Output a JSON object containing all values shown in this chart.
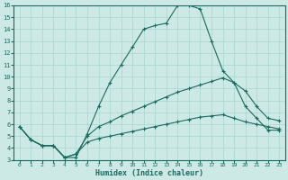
{
  "xlabel": "Humidex (Indice chaleur)",
  "bg_color": "#cce9e5",
  "grid_color": "#a8d5d0",
  "line_color": "#1a6b5e",
  "xlim": [
    -0.5,
    23.5
  ],
  "ylim": [
    3,
    16
  ],
  "xticks": [
    0,
    1,
    2,
    3,
    4,
    5,
    6,
    7,
    8,
    9,
    10,
    11,
    12,
    13,
    14,
    15,
    16,
    17,
    18,
    19,
    20,
    21,
    22,
    23
  ],
  "yticks": [
    3,
    4,
    5,
    6,
    7,
    8,
    9,
    10,
    11,
    12,
    13,
    14,
    15,
    16
  ],
  "series": [
    [
      5.8,
      4.7,
      4.2,
      4.2,
      3.2,
      3.2,
      5.2,
      7.5,
      9.5,
      11.0,
      12.5,
      14.0,
      14.3,
      14.5,
      16.0,
      16.0,
      15.7,
      13.0,
      10.5,
      9.5,
      7.5,
      6.5,
      5.5,
      5.5
    ],
    [
      5.8,
      4.7,
      4.2,
      4.2,
      3.2,
      3.5,
      5.0,
      5.8,
      6.2,
      6.7,
      7.1,
      7.5,
      7.9,
      8.3,
      8.7,
      9.0,
      9.3,
      9.6,
      9.9,
      9.5,
      8.8,
      7.5,
      6.5,
      6.3
    ],
    [
      5.8,
      4.7,
      4.2,
      4.2,
      3.2,
      3.5,
      4.5,
      4.8,
      5.0,
      5.2,
      5.4,
      5.6,
      5.8,
      6.0,
      6.2,
      6.4,
      6.6,
      6.7,
      6.8,
      6.5,
      6.2,
      6.0,
      5.8,
      5.6
    ]
  ]
}
